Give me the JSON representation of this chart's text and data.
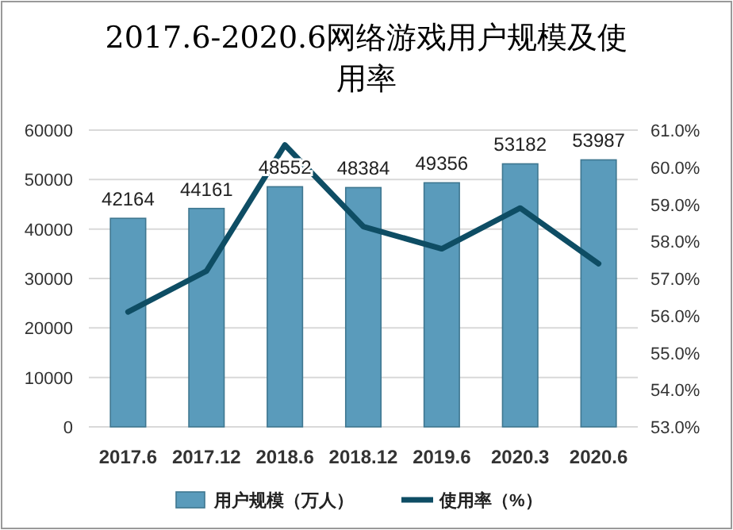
{
  "chart_data": {
    "type": "bar",
    "title": "2017.6-2020.6网络游戏用户规模及使用率",
    "categories": [
      "2017.6",
      "2017.12",
      "2018.6",
      "2018.12",
      "2019.6",
      "2020.3",
      "2020.6"
    ],
    "series": [
      {
        "name": "用户规模（万人）",
        "color": "#5a9bbb",
        "values": [
          42164,
          44161,
          48552,
          48384,
          49356,
          53182,
          53987
        ],
        "value_labels": [
          "42164",
          "44161",
          "48552",
          "48384",
          "49356",
          "53182",
          "53987"
        ]
      },
      {
        "name": "使用率（%）",
        "type": "line",
        "axis": "y2",
        "color": "#0e4d64",
        "values": [
          56.1,
          57.2,
          60.6,
          58.4,
          57.8,
          58.9,
          57.4
        ]
      }
    ],
    "ylim": [
      0,
      60000
    ],
    "yticks": [
      0,
      10000,
      20000,
      30000,
      40000,
      50000,
      60000
    ],
    "y2lim": [
      53,
      61
    ],
    "y2ticks": [
      {
        "value": 53,
        "label": "53.0%"
      },
      {
        "value": 54,
        "label": "54.0%"
      },
      {
        "value": 55,
        "label": "55.0%"
      },
      {
        "value": 56,
        "label": "56.0%"
      },
      {
        "value": 57,
        "label": "57.0%"
      },
      {
        "value": 58,
        "label": "58.0%"
      },
      {
        "value": 59,
        "label": "59.0%"
      },
      {
        "value": 60,
        "label": "60.0%"
      },
      {
        "value": 61,
        "label": "61.0%"
      }
    ],
    "grid": "y",
    "legend": "bottom"
  }
}
